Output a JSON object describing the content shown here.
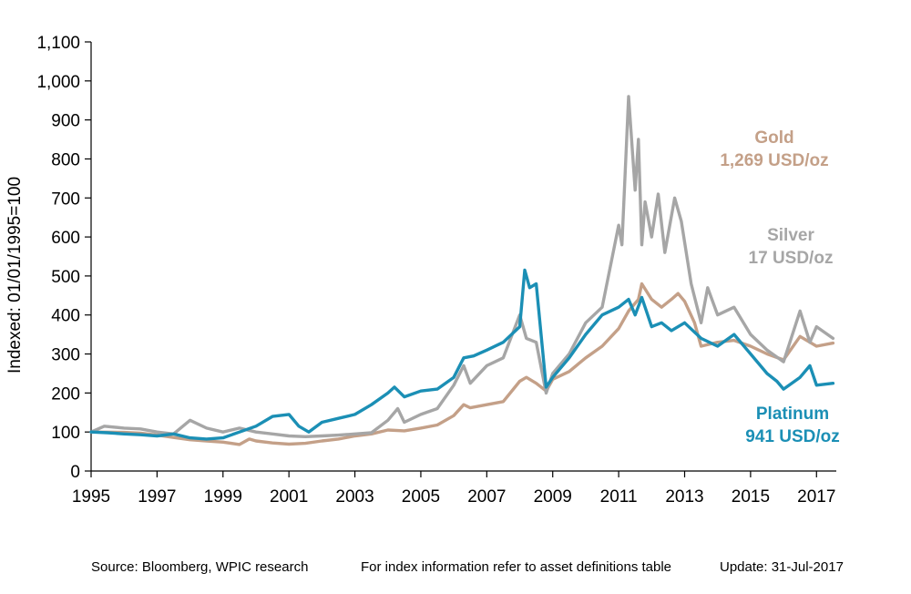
{
  "chart_data": {
    "type": "line",
    "title": "",
    "xlabel": "",
    "ylabel": "Indexed: 01/01/1995=100",
    "xlim": [
      1995,
      2017.6
    ],
    "ylim": [
      0,
      1100
    ],
    "x_ticks": [
      "1995",
      "1997",
      "1999",
      "2001",
      "2003",
      "2005",
      "2007",
      "2009",
      "2011",
      "2013",
      "2015",
      "2017"
    ],
    "y_ticks": [
      "0",
      "100",
      "200",
      "300",
      "400",
      "500",
      "600",
      "700",
      "800",
      "900",
      "1,000",
      "1,100"
    ],
    "grid": false,
    "series": [
      {
        "name": "Gold",
        "color": "#c4a088",
        "label_lines": [
          "Gold",
          "1,269 USD/oz"
        ],
        "x": [
          1995,
          1996,
          1996.5,
          1997,
          1997.5,
          1998,
          1998.5,
          1999,
          1999.5,
          1999.8,
          2000,
          2000.5,
          2001,
          2001.5,
          2002,
          2002.5,
          2003,
          2003.5,
          2004,
          2004.5,
          2005,
          2005.5,
          2006,
          2006.3,
          2006.5,
          2007,
          2007.5,
          2008,
          2008.2,
          2008.5,
          2008.8,
          2009,
          2009.5,
          2010,
          2010.5,
          2011,
          2011.3,
          2011.6,
          2011.7,
          2012,
          2012.3,
          2012.6,
          2012.8,
          2013,
          2013.3,
          2013.5,
          2014,
          2014.5,
          2015,
          2015.5,
          2016,
          2016.5,
          2017,
          2017.5
        ],
        "values": [
          100,
          99,
          97,
          92,
          86,
          80,
          77,
          74,
          68,
          82,
          77,
          72,
          69,
          71,
          77,
          82,
          90,
          95,
          105,
          103,
          110,
          118,
          142,
          170,
          162,
          170,
          178,
          230,
          240,
          225,
          205,
          235,
          255,
          290,
          320,
          365,
          410,
          440,
          480,
          440,
          420,
          440,
          455,
          435,
          380,
          320,
          330,
          335,
          320,
          300,
          285,
          345,
          320,
          328
        ]
      },
      {
        "name": "Silver",
        "color": "#a6a6a6",
        "label_lines": [
          "Silver",
          "17 USD/oz"
        ],
        "x": [
          1995,
          1995.4,
          1996,
          1996.5,
          1997,
          1997.5,
          1998,
          1998.5,
          1999,
          1999.5,
          2000,
          2000.5,
          2001,
          2001.5,
          2002,
          2002.5,
          2003,
          2003.5,
          2004,
          2004.3,
          2004.5,
          2005,
          2005.5,
          2006,
          2006.3,
          2006.5,
          2007,
          2007.5,
          2008,
          2008.2,
          2008.5,
          2008.8,
          2009,
          2009.5,
          2010,
          2010.5,
          2011,
          2011.1,
          2011.3,
          2011.5,
          2011.6,
          2011.7,
          2011.8,
          2012,
          2012.2,
          2012.4,
          2012.7,
          2012.9,
          2013.2,
          2013.5,
          2013.7,
          2014,
          2014.5,
          2015,
          2015.5,
          2016,
          2016.5,
          2016.8,
          2017,
          2017.5
        ],
        "values": [
          100,
          115,
          110,
          108,
          100,
          95,
          130,
          110,
          100,
          110,
          100,
          95,
          90,
          88,
          90,
          92,
          95,
          98,
          130,
          160,
          125,
          145,
          160,
          220,
          270,
          225,
          270,
          290,
          400,
          340,
          330,
          200,
          250,
          300,
          380,
          420,
          630,
          580,
          960,
          720,
          850,
          580,
          690,
          600,
          710,
          560,
          700,
          640,
          480,
          380,
          470,
          400,
          420,
          350,
          310,
          280,
          410,
          330,
          370,
          340
        ]
      },
      {
        "name": "Platinum",
        "color": "#1b8fb5",
        "label_lines": [
          "Platinum",
          "941 USD/oz"
        ],
        "x": [
          1995,
          1995.5,
          1996,
          1996.5,
          1997,
          1997.5,
          1998,
          1998.5,
          1999,
          1999.5,
          2000,
          2000.5,
          2001,
          2001.3,
          2001.6,
          2002,
          2002.5,
          2003,
          2003.5,
          2004,
          2004.2,
          2004.5,
          2005,
          2005.5,
          2006,
          2006.3,
          2006.6,
          2007,
          2007.5,
          2008,
          2008.15,
          2008.3,
          2008.5,
          2008.8,
          2009,
          2009.5,
          2010,
          2010.5,
          2011,
          2011.3,
          2011.5,
          2011.7,
          2012,
          2012.3,
          2012.6,
          2013,
          2013.5,
          2014,
          2014.5,
          2015,
          2015.5,
          2015.8,
          2016,
          2016.5,
          2016.8,
          2017,
          2017.5
        ],
        "values": [
          100,
          98,
          95,
          93,
          90,
          95,
          85,
          82,
          85,
          100,
          115,
          140,
          145,
          115,
          100,
          125,
          135,
          145,
          170,
          200,
          215,
          190,
          205,
          210,
          240,
          290,
          295,
          310,
          330,
          370,
          515,
          470,
          480,
          215,
          240,
          290,
          350,
          400,
          420,
          440,
          400,
          445,
          370,
          380,
          360,
          380,
          340,
          320,
          350,
          300,
          250,
          230,
          210,
          240,
          270,
          220,
          225
        ]
      }
    ]
  },
  "footer": {
    "source": "Source: Bloomberg, WPIC research",
    "note": "For index information refer to asset definitions table",
    "update": "Update: 31-Jul-2017"
  }
}
